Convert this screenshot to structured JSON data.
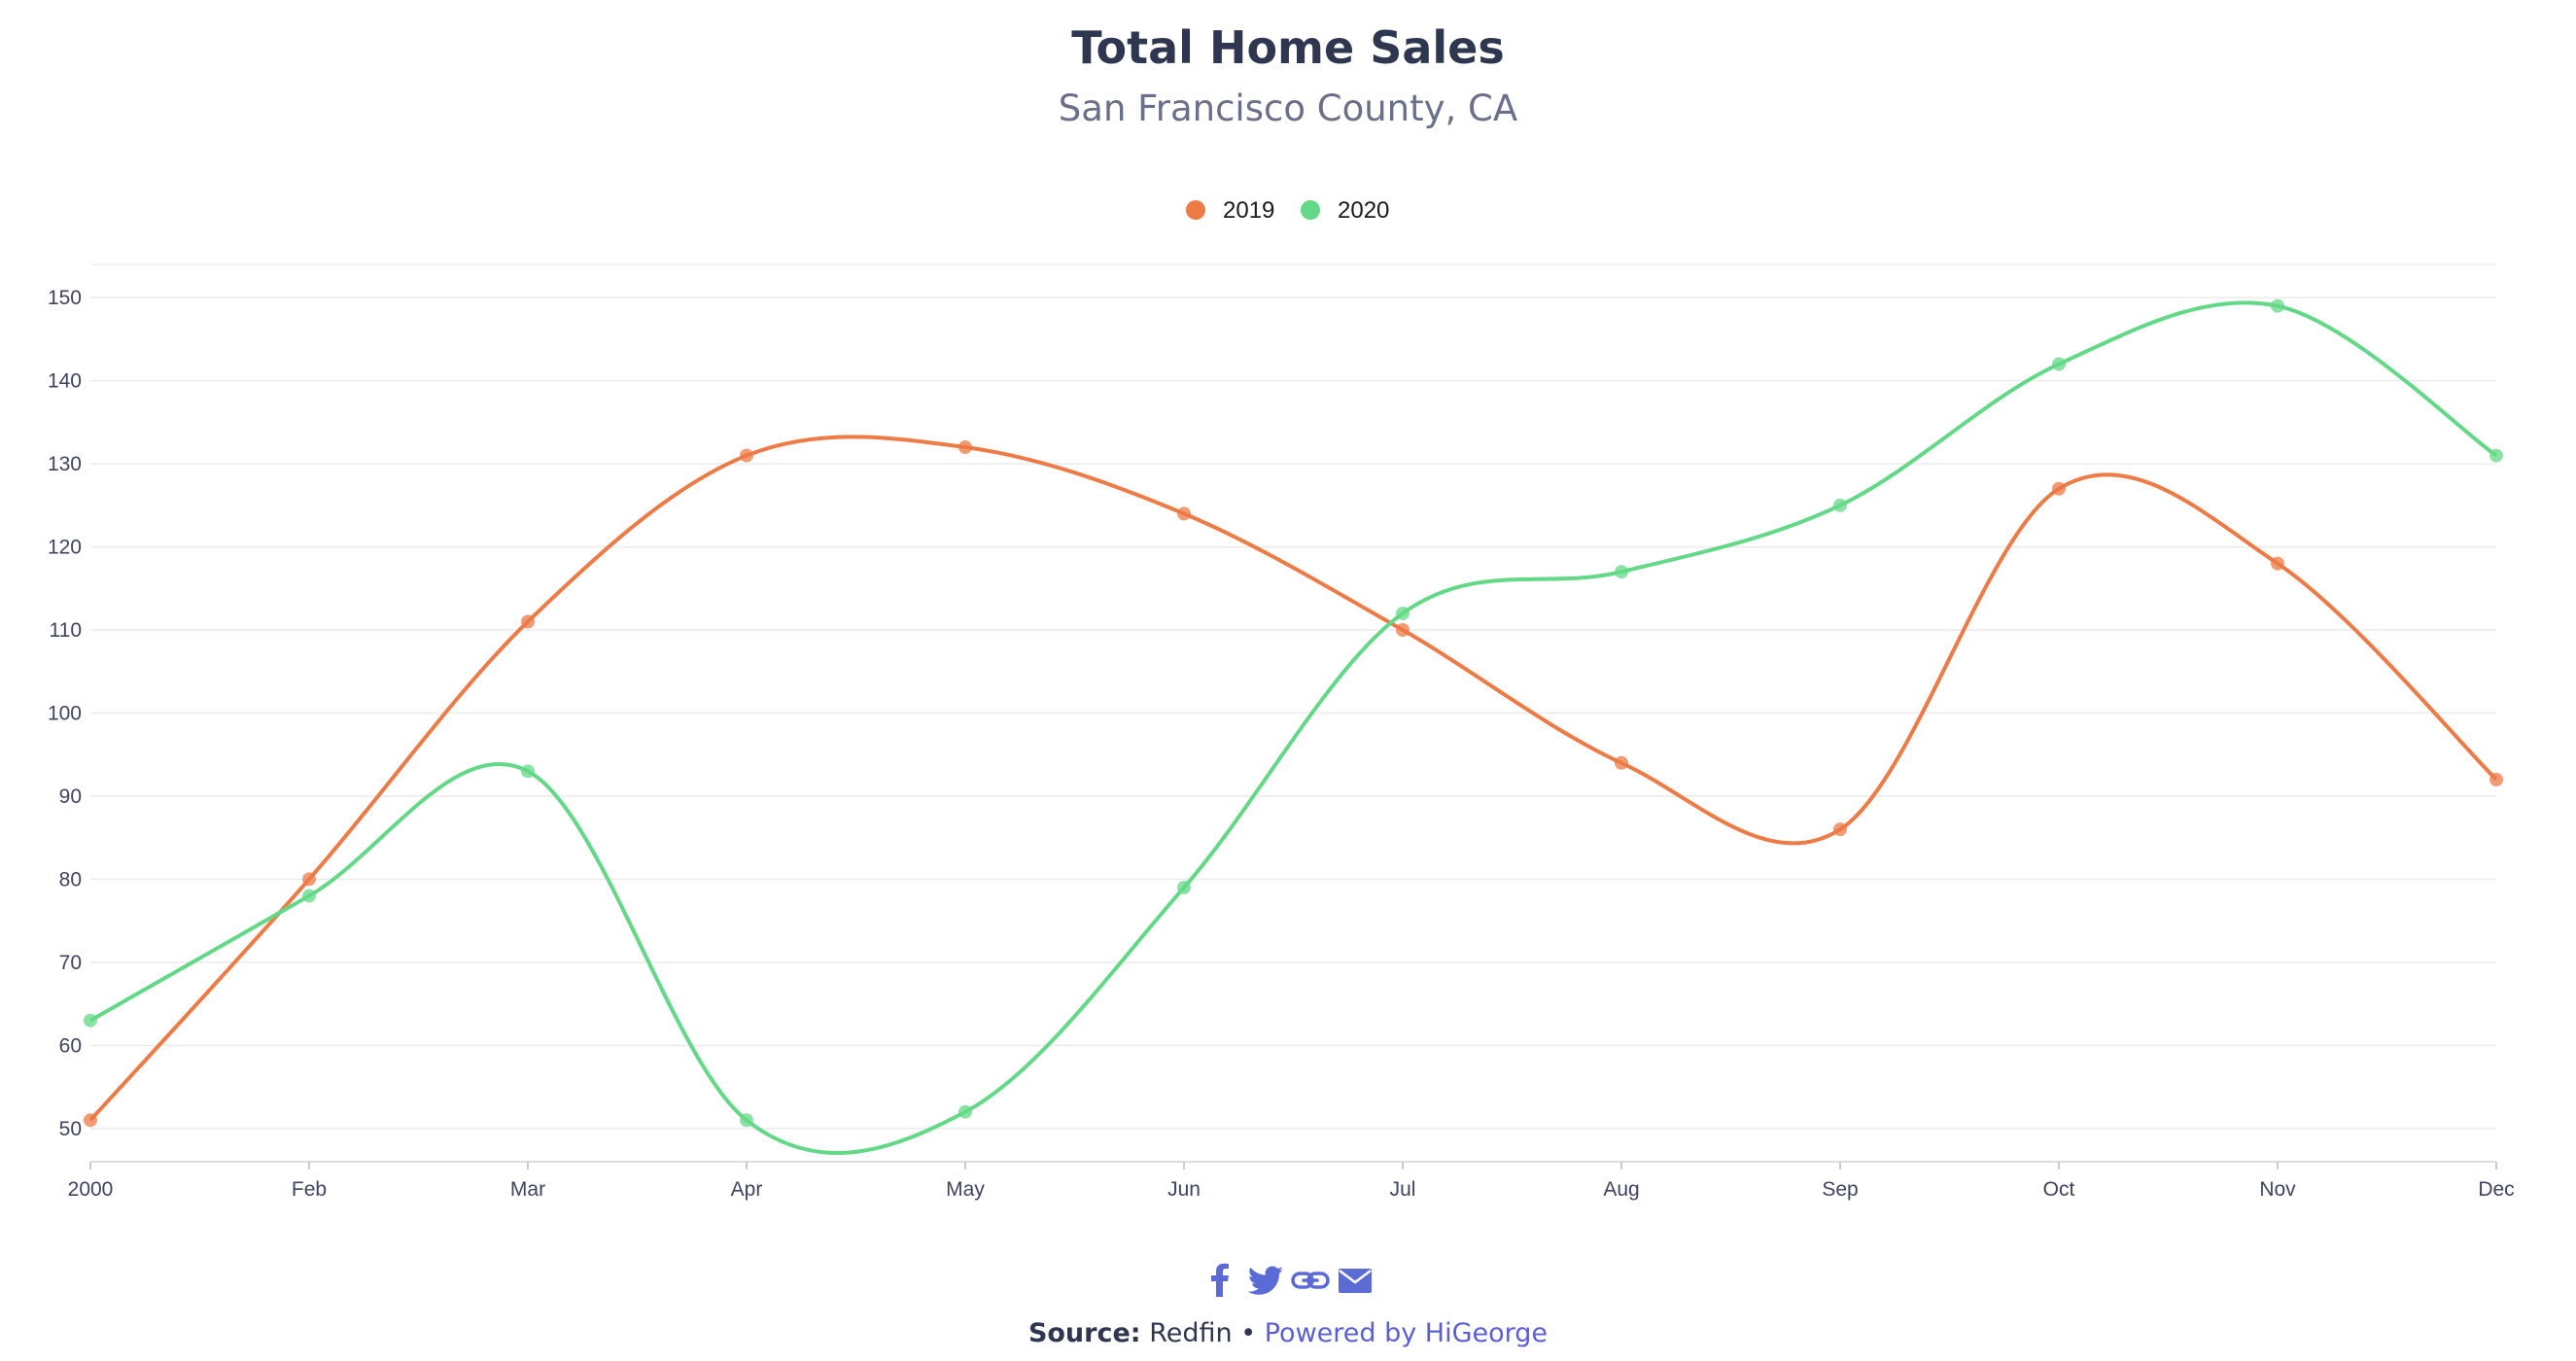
{
  "chart_data": {
    "type": "line",
    "title": "Total Home Sales",
    "subtitle": "San Francisco County, CA",
    "categories": [
      "2000",
      "Feb",
      "Mar",
      "Apr",
      "May",
      "Jun",
      "Jul",
      "Aug",
      "Sep",
      "Oct",
      "Nov",
      "Dec"
    ],
    "series": [
      {
        "name": "2019",
        "color": "#ee7a45",
        "values": [
          51,
          80,
          111,
          131,
          132,
          124,
          110,
          94,
          86,
          127,
          118,
          92
        ]
      },
      {
        "name": "2020",
        "color": "#63d987",
        "values": [
          63,
          78,
          93,
          51,
          52,
          79,
          112,
          117,
          125,
          142,
          149,
          131
        ]
      }
    ],
    "yticks": [
      50,
      60,
      70,
      80,
      90,
      100,
      110,
      120,
      130,
      140,
      150
    ],
    "ylim": [
      46,
      154
    ],
    "grid": true,
    "curve": "smooth",
    "legend_position": "top-center"
  },
  "share": {
    "icons": [
      "facebook-icon",
      "twitter-icon",
      "link-icon",
      "email-icon"
    ],
    "color": "#5b6bd6"
  },
  "footer": {
    "source_label": "Source:",
    "source_value": "Redfin",
    "separator": "•",
    "powered_by": "Powered by HiGeorge"
  }
}
